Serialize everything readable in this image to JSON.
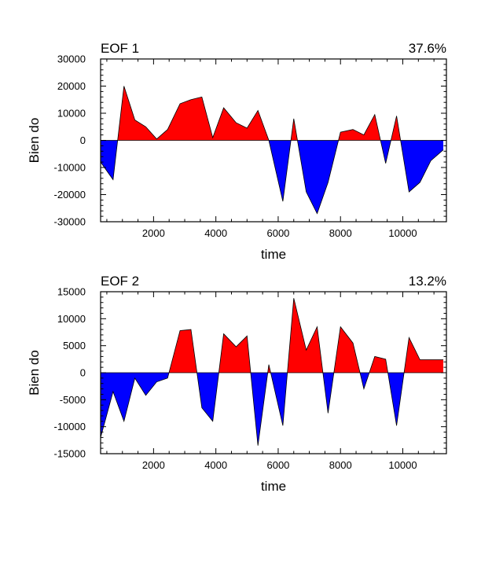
{
  "chart_data": [
    {
      "type": "area",
      "title": "EOF 1",
      "title_right": "37.6%",
      "xlabel": "time",
      "ylabel": "Bien do",
      "xlim": [
        300,
        11400
      ],
      "ylim": [
        -30000,
        30000
      ],
      "xticks": [
        2000,
        4000,
        6000,
        8000,
        10000
      ],
      "xtick_labels": [
        "2000",
        "4000",
        "6000",
        "8000",
        "10000"
      ],
      "yticks": [
        30000,
        20000,
        10000,
        0,
        -10000,
        -20000,
        -30000
      ],
      "ytick_labels": [
        "30000",
        "20000",
        "10000",
        "0",
        "-10000",
        "-20000",
        "-30000"
      ],
      "positive_color": "#ff0000",
      "negative_color": "#0000ff",
      "grid": false,
      "x": [
        300,
        700,
        1050,
        1400,
        1750,
        2100,
        2450,
        2850,
        3200,
        3550,
        3900,
        4250,
        4650,
        5000,
        5350,
        5700,
        6150,
        6500,
        6900,
        7250,
        7600,
        8000,
        8400,
        8750,
        9100,
        9450,
        9800,
        10200,
        10550,
        10900,
        11300
      ],
      "values": [
        -8000,
        -14500,
        20000,
        7500,
        5000,
        500,
        4000,
        13500,
        15000,
        16000,
        1000,
        12000,
        6500,
        4500,
        11000,
        0,
        -22500,
        8000,
        -19000,
        -27000,
        -15500,
        3000,
        4000,
        2000,
        9500,
        -8500,
        9000,
        -19000,
        -15500,
        -7500,
        -3500
      ]
    },
    {
      "type": "area",
      "title": "EOF 2",
      "title_right": "13.2%",
      "xlabel": "time",
      "ylabel": "Bien do",
      "xlim": [
        300,
        11400
      ],
      "ylim": [
        -15000,
        15000
      ],
      "xticks": [
        2000,
        4000,
        6000,
        8000,
        10000
      ],
      "xtick_labels": [
        "2000",
        "4000",
        "6000",
        "8000",
        "10000"
      ],
      "yticks": [
        15000,
        10000,
        5000,
        0,
        -5000,
        -10000,
        -15000
      ],
      "ytick_labels": [
        "15000",
        "10000",
        "5000",
        "0",
        "-5000",
        "-10000",
        "-15000"
      ],
      "positive_color": "#ff0000",
      "negative_color": "#0000ff",
      "grid": false,
      "x": [
        300,
        700,
        1050,
        1400,
        1750,
        2100,
        2450,
        2850,
        3200,
        3550,
        3900,
        4250,
        4650,
        5000,
        5350,
        5700,
        6150,
        6500,
        6900,
        7250,
        7600,
        8000,
        8400,
        8750,
        9100,
        9450,
        9800,
        10200,
        10550,
        10900,
        11300
      ],
      "values": [
        -12000,
        -3500,
        -9000,
        -1000,
        -4200,
        -1700,
        -1000,
        7800,
        8000,
        -6500,
        -9000,
        7200,
        4800,
        6800,
        -13500,
        1500,
        -9800,
        13800,
        4200,
        8500,
        -7500,
        8500,
        5500,
        -3000,
        3000,
        2500,
        -9800,
        6500,
        2400,
        2400,
        2400
      ]
    }
  ]
}
